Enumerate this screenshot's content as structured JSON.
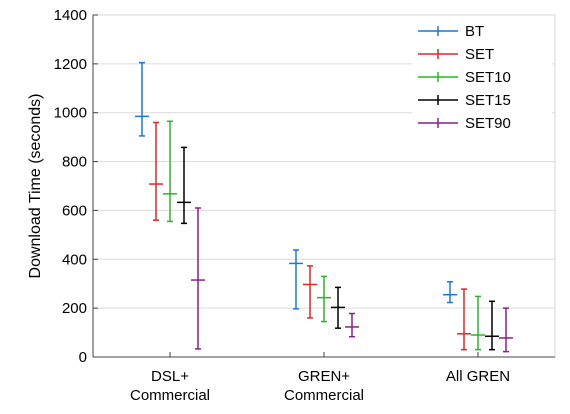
{
  "chart_data": {
    "type": "errorbar",
    "title": "",
    "xlabel": "",
    "ylabel": "Download Time (seconds)",
    "ylim": [
      0,
      1400
    ],
    "yticks": [
      0,
      200,
      400,
      600,
      800,
      1000,
      1200,
      1400
    ],
    "grid": "horizontal",
    "legend": "top-right",
    "categories": [
      [
        "DSL+",
        "Commercial"
      ],
      [
        "GREN+",
        "Commercial"
      ],
      [
        "All GREN"
      ]
    ],
    "series": [
      {
        "name": "BT",
        "color": "#1f77d4",
        "values": [
          {
            "mid": 985,
            "low": 905,
            "high": 1205
          },
          {
            "mid": 383,
            "low": 197,
            "high": 438
          },
          {
            "mid": 255,
            "low": 223,
            "high": 308
          }
        ]
      },
      {
        "name": "SET",
        "color": "#e32626",
        "values": [
          {
            "mid": 708,
            "low": 560,
            "high": 960
          },
          {
            "mid": 297,
            "low": 160,
            "high": 373
          },
          {
            "mid": 95,
            "low": 30,
            "high": 278
          }
        ]
      },
      {
        "name": "SET10",
        "color": "#2ab52a",
        "values": [
          {
            "mid": 668,
            "low": 555,
            "high": 965
          },
          {
            "mid": 243,
            "low": 145,
            "high": 330
          },
          {
            "mid": 90,
            "low": 30,
            "high": 248
          }
        ]
      },
      {
        "name": "SET15",
        "color": "#000000",
        "values": [
          {
            "mid": 633,
            "low": 547,
            "high": 858
          },
          {
            "mid": 203,
            "low": 118,
            "high": 285
          },
          {
            "mid": 85,
            "low": 30,
            "high": 228
          }
        ]
      },
      {
        "name": "SET90",
        "color": "#8a1f8a",
        "values": [
          {
            "mid": 315,
            "low": 33,
            "high": 610
          },
          {
            "mid": 123,
            "low": 83,
            "high": 178
          },
          {
            "mid": 78,
            "low": 22,
            "high": 200
          }
        ]
      }
    ]
  }
}
